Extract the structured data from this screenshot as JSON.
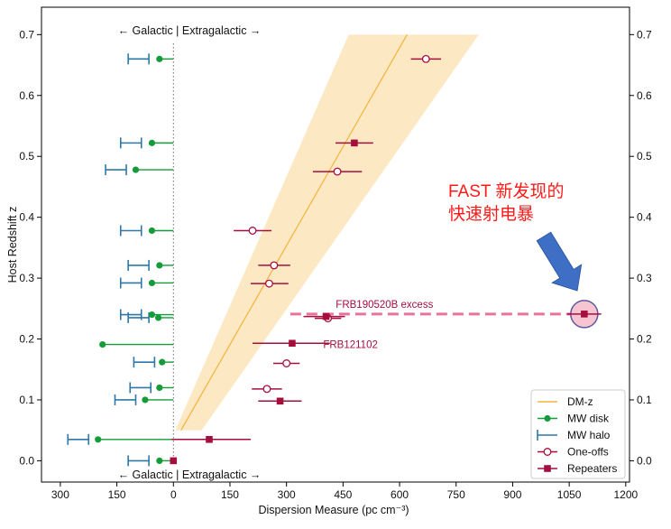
{
  "chart_data": {
    "type": "scatter",
    "xlabel": "Dispersion Measure (pc cm⁻³)",
    "ylabel": "Host Redshift z",
    "xlim": [
      -350,
      1210
    ],
    "ylim": [
      -0.035,
      0.745
    ],
    "x_axis_inverted_left_of_zero": true,
    "x_ticks": [
      -300,
      -150,
      0,
      150,
      300,
      450,
      600,
      750,
      900,
      1050,
      1200
    ],
    "x_tick_labels": [
      "300",
      "150",
      "0",
      "150",
      "300",
      "450",
      "600",
      "750",
      "900",
      "1050",
      "1200"
    ],
    "y_ticks": [
      0.0,
      0.1,
      0.2,
      0.3,
      0.4,
      0.5,
      0.6,
      0.7
    ],
    "y_tick_labels": [
      "0.0",
      "0.1",
      "0.2",
      "0.3",
      "0.4",
      "0.5",
      "0.6",
      "0.7"
    ],
    "top_label": "← Galactic | Extragalactic →",
    "bottom_label": "← Galactic | Extragalactic →",
    "dmz_band": {
      "center": [
        [
          20,
          0.05
        ],
        [
          620,
          0.7
        ]
      ],
      "lower": [
        [
          75,
          0.05
        ],
        [
          810,
          0.7
        ]
      ],
      "upper": [
        [
          5,
          0.05
        ],
        [
          465,
          0.7
        ]
      ]
    },
    "mw_disk": [
      {
        "z": 0.0,
        "x": -37
      },
      {
        "z": 0.035,
        "x": -200
      },
      {
        "z": 0.1,
        "x": -75
      },
      {
        "z": 0.12,
        "x": -37
      },
      {
        "z": 0.162,
        "x": -30
      },
      {
        "z": 0.191,
        "x": -188
      },
      {
        "z": 0.235,
        "x": -40
      },
      {
        "z": 0.24,
        "x": -57
      },
      {
        "z": 0.292,
        "x": -57
      },
      {
        "z": 0.321,
        "x": -37
      },
      {
        "z": 0.378,
        "x": -57
      },
      {
        "z": 0.478,
        "x": -100
      },
      {
        "z": 0.522,
        "x": -57
      },
      {
        "z": 0.66,
        "x": -37
      }
    ],
    "mw_halo": [
      {
        "z": 0.0,
        "lo": -120,
        "hi": -65
      },
      {
        "z": 0.035,
        "lo": -280,
        "hi": -225
      },
      {
        "z": 0.1,
        "lo": -155,
        "hi": -100
      },
      {
        "z": 0.12,
        "lo": -115,
        "hi": -60
      },
      {
        "z": 0.162,
        "lo": -105,
        "hi": -50
      },
      {
        "z": 0.235,
        "lo": -120,
        "hi": -65
      },
      {
        "z": 0.24,
        "lo": -140,
        "hi": -85
      },
      {
        "z": 0.292,
        "lo": -140,
        "hi": -85
      },
      {
        "z": 0.321,
        "lo": -120,
        "hi": -65
      },
      {
        "z": 0.378,
        "lo": -140,
        "hi": -85
      },
      {
        "z": 0.478,
        "lo": -180,
        "hi": -125
      },
      {
        "z": 0.522,
        "lo": -140,
        "hi": -85
      },
      {
        "z": 0.66,
        "lo": -120,
        "hi": -65
      }
    ],
    "one_offs": [
      {
        "z": 0.118,
        "x": 248,
        "lo": 208,
        "hi": 288
      },
      {
        "z": 0.16,
        "x": 300,
        "lo": 265,
        "hi": 335
      },
      {
        "z": 0.234,
        "x": 410,
        "lo": 375,
        "hi": 445
      },
      {
        "z": 0.291,
        "x": 254,
        "lo": 205,
        "hi": 305
      },
      {
        "z": 0.321,
        "x": 267,
        "lo": 225,
        "hi": 310
      },
      {
        "z": 0.378,
        "x": 210,
        "lo": 160,
        "hi": 260
      },
      {
        "z": 0.475,
        "x": 435,
        "lo": 370,
        "hi": 500
      },
      {
        "z": 0.66,
        "x": 670,
        "lo": 630,
        "hi": 710
      }
    ],
    "repeaters": [
      {
        "z": 0.0,
        "x": 0,
        "lo": -5,
        "hi": 5
      },
      {
        "z": 0.035,
        "x": 95,
        "lo": -5,
        "hi": 205
      },
      {
        "z": 0.098,
        "x": 283,
        "lo": 225,
        "hi": 340
      },
      {
        "z": 0.193,
        "x": 315,
        "lo": 210,
        "hi": 415
      },
      {
        "z": 0.237,
        "x": 405,
        "lo": 345,
        "hi": 455
      },
      {
        "z": 0.241,
        "x": 1090,
        "lo": 1045,
        "hi": 1135
      },
      {
        "z": 0.522,
        "x": 480,
        "lo": 430,
        "hi": 530
      }
    ],
    "excess_line": {
      "z": 0.241,
      "x_from": 310,
      "x_to": 1090,
      "label": "FRB190520B excess"
    },
    "frb121102_label": {
      "text": "FRB121102",
      "x": 450,
      "z": 0.191
    },
    "highlight": {
      "x": 1090,
      "z": 0.241
    },
    "annotation": {
      "line1": "FAST 新发现的",
      "line2": "快速射电暴"
    },
    "legend": [
      {
        "key": "dmz",
        "label": "DM-z"
      },
      {
        "key": "mw_disk",
        "label": "MW disk"
      },
      {
        "key": "mw_halo",
        "label": "MW halo"
      },
      {
        "key": "one_offs",
        "label": "One-offs"
      },
      {
        "key": "repeaters",
        "label": "Repeaters"
      }
    ],
    "colors": {
      "dmz_line": "#f2b33a",
      "dmz_band": "#fde8c4",
      "mw_disk": "#159c3a",
      "mw_halo": "#2e78a8",
      "frb": "#a50f3e",
      "excess": "#e8739c",
      "annotation": "#ff1a1a",
      "arrow": "#3f6fc4"
    }
  }
}
